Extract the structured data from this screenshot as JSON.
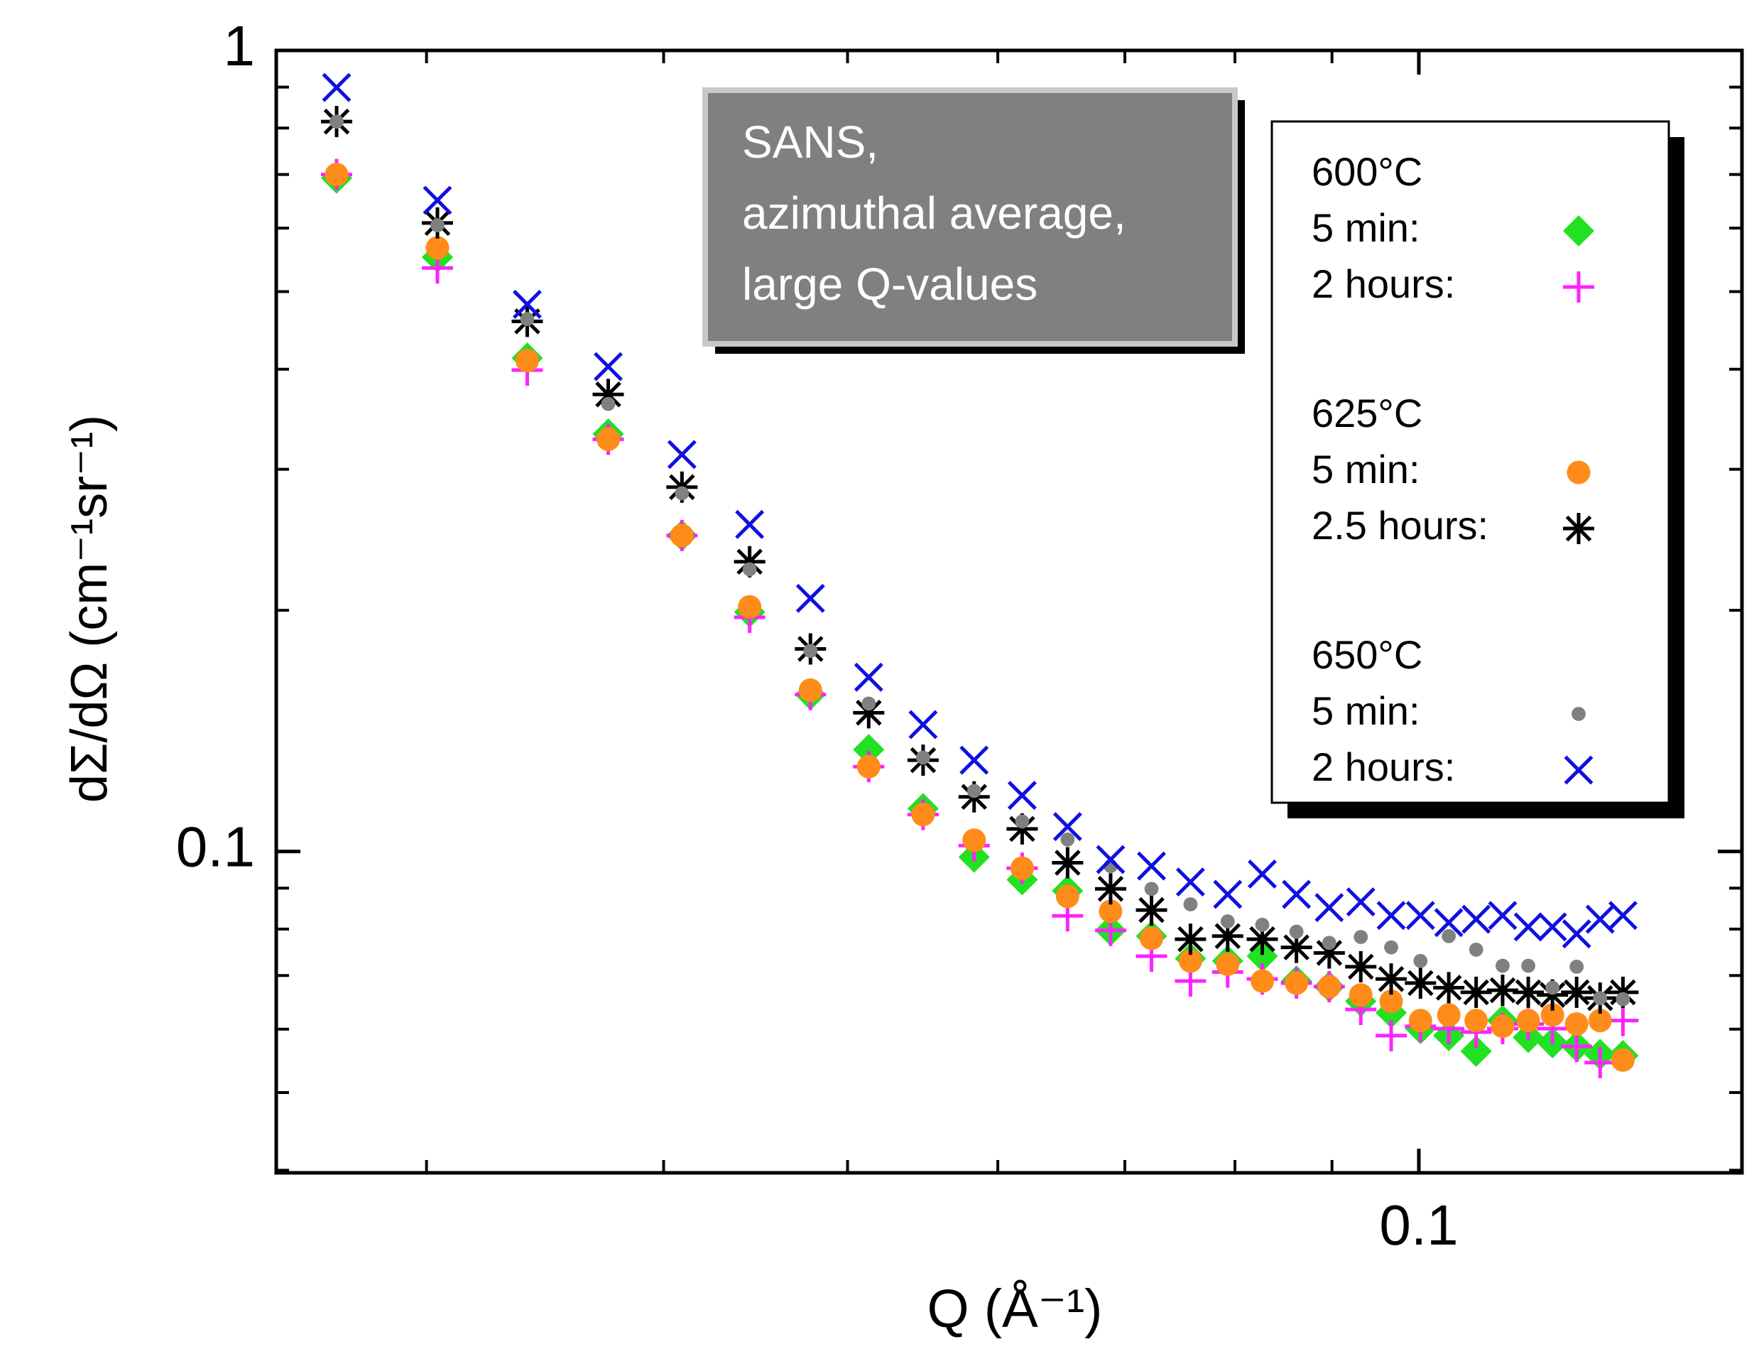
{
  "chart_data": {
    "type": "scatter",
    "xlabel": "Q (Å⁻¹)",
    "ylabel": "dΣ/dΩ   (cm⁻¹sr⁻¹)",
    "annotation": [
      "SANS,",
      "azimuthal average,",
      "large Q-values"
    ],
    "xscale": "log",
    "yscale": "log",
    "xlim": [
      0.025,
      0.148
    ],
    "ylim": [
      0.0397,
      1
    ],
    "xticks": [
      0.1
    ],
    "yticks": [
      0.1,
      1
    ],
    "xminorticks": [
      0.03,
      0.04,
      0.05,
      0.06,
      0.07,
      0.08,
      0.09
    ],
    "yminorticks": [
      0.04,
      0.05,
      0.06,
      0.07,
      0.08,
      0.09,
      0.2,
      0.3,
      0.4,
      0.5,
      0.6,
      0.7,
      0.8,
      0.9
    ],
    "legend": "upper right",
    "x": [
      0.0269,
      0.0304,
      0.0339,
      0.0374,
      0.0409,
      0.0444,
      0.0478,
      0.0513,
      0.0548,
      0.0583,
      0.0618,
      0.0653,
      0.0688,
      0.0723,
      0.0758,
      0.0793,
      0.0827,
      0.0862,
      0.0897,
      0.0932,
      0.0967,
      0.1002,
      0.1037,
      0.1072,
      0.1107,
      0.1142,
      0.1176,
      0.1211,
      0.1246,
      0.1281
    ],
    "series": [
      {
        "group": "600°C",
        "name": "5 min:",
        "marker": "diamond",
        "color": "#22e022",
        "values": [
          0.693,
          0.552,
          0.413,
          0.332,
          0.248,
          0.199,
          0.157,
          0.134,
          0.1131,
          0.0984,
          0.0922,
          0.0893,
          0.0797,
          0.0784,
          0.0735,
          0.073,
          0.074,
          0.0689,
          0.0678,
          0.065,
          0.0629,
          0.0601,
          0.0589,
          0.0563,
          0.0615,
          0.0586,
          0.0577,
          0.0571,
          0.0558,
          0.0556
        ]
      },
      {
        "group": "600°C",
        "name": "2 hours:",
        "marker": "plus",
        "color": "#ff22ff",
        "values": [
          0.7,
          0.535,
          0.399,
          0.327,
          0.248,
          0.196,
          0.157,
          0.1276,
          0.1112,
          0.1017,
          0.0953,
          0.0831,
          0.0797,
          0.074,
          0.0689,
          0.0707,
          0.0693,
          0.0685,
          0.0678,
          0.0635,
          0.0589,
          0.0605,
          0.0601,
          0.0595,
          0.0601,
          0.0609,
          0.0601,
          0.0571,
          0.0545,
          0.0615
        ]
      },
      {
        "group": "625°C",
        "name": "5 min:",
        "marker": "circle",
        "color": "#ff8c1a",
        "values": [
          0.7,
          0.567,
          0.41,
          0.327,
          0.248,
          0.202,
          0.159,
          0.1276,
          0.1112,
          0.1033,
          0.0953,
          0.0879,
          0.0842,
          0.0779,
          0.073,
          0.0723,
          0.0689,
          0.0685,
          0.0678,
          0.0662,
          0.065,
          0.0615,
          0.0625,
          0.0615,
          0.0605,
          0.0615,
          0.0625,
          0.0609,
          0.0615,
          0.0549
        ]
      },
      {
        "group": "625°C",
        "name": "2.5 hours:",
        "marker": "asterisk",
        "color": "#000000",
        "values": [
          0.815,
          0.609,
          0.459,
          0.372,
          0.285,
          0.23,
          0.179,
          0.149,
          0.13,
          0.117,
          0.1067,
          0.0968,
          0.0898,
          0.0845,
          0.0777,
          0.0784,
          0.0777,
          0.0759,
          0.0747,
          0.0718,
          0.0693,
          0.0685,
          0.0676,
          0.0667,
          0.0671,
          0.0667,
          0.0662,
          0.0667,
          0.0656,
          0.0667
        ]
      },
      {
        "group": "650°C",
        "name": "5 min:",
        "marker": "dot",
        "color": "#808080",
        "values": [
          0.815,
          0.605,
          0.462,
          0.362,
          0.28,
          0.225,
          0.178,
          0.153,
          0.131,
          0.119,
          0.109,
          0.1035,
          0.0959,
          0.0898,
          0.0859,
          0.0818,
          0.081,
          0.0794,
          0.0769,
          0.0782,
          0.0759,
          0.073,
          0.0784,
          0.0754,
          0.072,
          0.072,
          0.0676,
          0.0718,
          0.0656,
          0.0654
        ]
      },
      {
        "group": "650°C",
        "name": "2 hours:",
        "marker": "cross",
        "color": "#1010e0",
        "values": [
          0.899,
          0.65,
          0.482,
          0.403,
          0.313,
          0.256,
          0.207,
          0.165,
          0.144,
          0.13,
          0.1175,
          0.1074,
          0.0977,
          0.0959,
          0.0916,
          0.0884,
          0.0937,
          0.0884,
          0.0851,
          0.0865,
          0.0832,
          0.0832,
          0.0815,
          0.0823,
          0.0832,
          0.0805,
          0.0805,
          0.0789,
          0.0823,
          0.0832
        ]
      }
    ]
  }
}
